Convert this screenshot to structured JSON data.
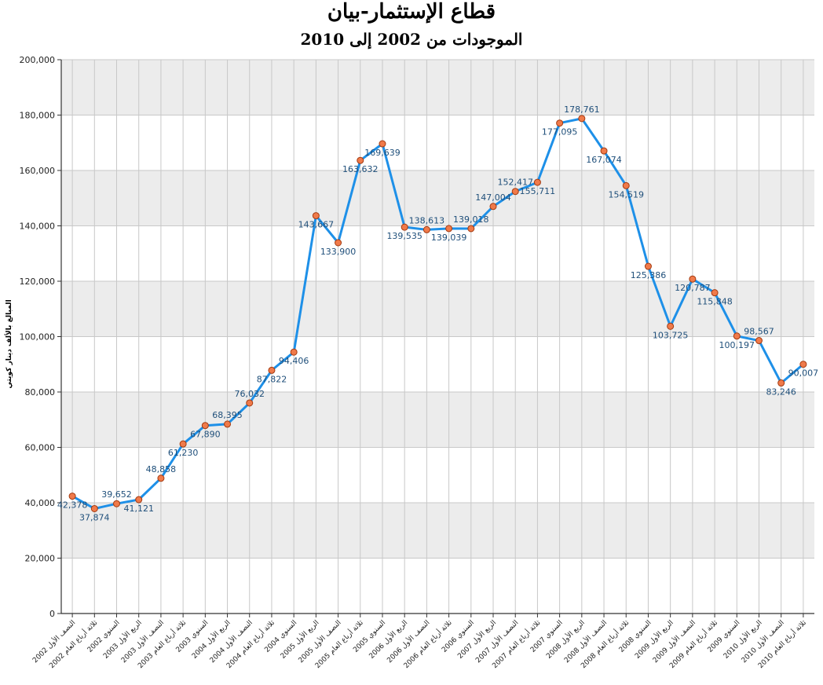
{
  "chart_data": {
    "type": "line",
    "title": "قطاع الإستثمار-بيان",
    "subtitle": "الموجودات من 2002 إلى 2010",
    "ylabel": "المبالغ بالألف دينار كويتي",
    "xlabel": "",
    "ylim": [
      0,
      200000
    ],
    "y_ticks": [
      "0",
      "20,000",
      "40,000",
      "60,000",
      "80,000",
      "100,000",
      "120,000",
      "140,000",
      "160,000",
      "180,000",
      "200,000"
    ],
    "grid": true,
    "categories": [
      "النصف الأول 2002",
      "ثلاثة أرباع العام 2002",
      "السنوي 2002",
      "الربع الأول 2003",
      "النصف الأول 2003",
      "ثلاثة أرباع العام 2003",
      "السنوي 2003",
      "الربع الأول 2004",
      "النصف الأول 2004",
      "ثلاثة أرباع العام 2004",
      "السنوي 2004",
      "الربع الأول 2005",
      "النصف الأول 2005",
      "ثلاثة أرباع العام 2005",
      "السنوي 2005",
      "الربع الأول 2006",
      "النصف الأول 2006",
      "ثلاثة أرباع العام 2006",
      "السنوي 2006",
      "الربع الأول 2007",
      "النصف الأول 2007",
      "ثلاثة أرباع العام 2007",
      "السنوي 2007",
      "الربع الأول 2008",
      "النصف الأول 2008",
      "ثلاثة أرباع العام 2008",
      "السنوي 2008",
      "الربع الأول 2009",
      "النصف الأول 2009",
      "ثلاثة أرباع العام 2009",
      "السنوي 2009",
      "الربع الأول 2010",
      "النصف الأول 2010",
      "ثلاثة أرباع العام 2010"
    ],
    "values": [
      42378,
      37874,
      39652,
      41121,
      48858,
      61230,
      67890,
      68395,
      76032,
      87822,
      94406,
      143667,
      133900,
      163632,
      169639,
      139535,
      138613,
      139039,
      139018,
      147004,
      152417,
      155711,
      177095,
      178761,
      167074,
      154519,
      125386,
      103725,
      120787,
      115848,
      100197,
      98567,
      83246,
      90007
    ],
    "labels": [
      "42,378",
      "37,874",
      "39,652",
      "41,121",
      "48,858",
      "61,230",
      "67,890",
      "68,395",
      "76,032",
      "87,822",
      "94,406",
      "143,667",
      "133,900",
      "163,632",
      "169,639",
      "139,535",
      "138,613",
      "139,039",
      "139,018",
      "147,004",
      "152,417",
      "155,711",
      "177,095",
      "178,761",
      "167,074",
      "154,519",
      "125,386",
      "103,725",
      "120,787",
      "115,848",
      "100,197",
      "98,567",
      "83,246",
      "90,007"
    ],
    "label_position": [
      "below",
      "below",
      "above",
      "below",
      "above",
      "below",
      "below",
      "above",
      "above",
      "below",
      "below",
      "below",
      "below",
      "below",
      "below",
      "below",
      "above",
      "below",
      "above",
      "above",
      "above",
      "below",
      "below",
      "above",
      "below",
      "below",
      "below",
      "below",
      "below",
      "below",
      "below",
      "above",
      "below",
      "below"
    ],
    "colors": {
      "line": "#1e90e8",
      "marker_fill": "#f07a4a",
      "marker_stroke": "#a33a10",
      "label": "#1f4f7a",
      "band": "#ececec",
      "grid": "#c8c8c8",
      "axis": "#333333"
    }
  }
}
